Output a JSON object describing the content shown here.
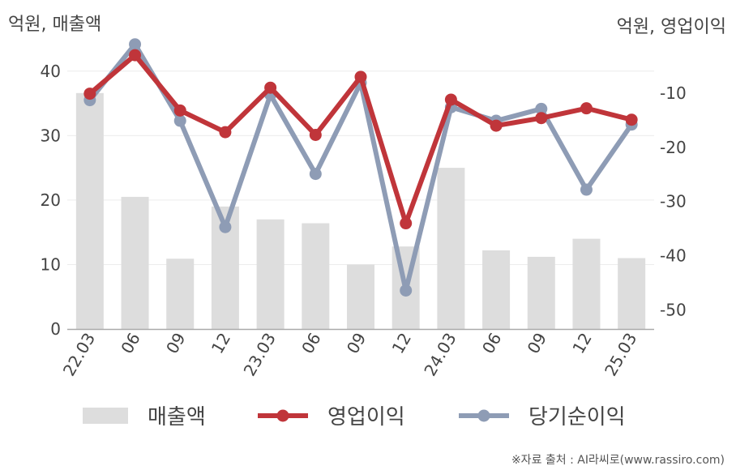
{
  "chart_data": {
    "type": "bar+line",
    "left_unit": "억원, 매출액",
    "right_unit": "억원, 영업이익",
    "categories": [
      "22.03",
      "06",
      "09",
      "12",
      "23.03",
      "06",
      "09",
      "12",
      "24.03",
      "06",
      "09",
      "12",
      "25.03"
    ],
    "left_axis": {
      "range": [
        0,
        45
      ],
      "ticks": [
        0,
        10,
        20,
        30,
        40
      ]
    },
    "right_axis": {
      "range": [
        -53.5,
        0
      ],
      "ticks": [
        -10,
        -20,
        -30,
        -40,
        -50
      ]
    },
    "grid": true,
    "series": [
      {
        "name": "매출액",
        "type": "bar",
        "axis": "left",
        "color": "#dddddd",
        "values": [
          36.6,
          20.5,
          10.9,
          19.0,
          17.0,
          16.4,
          10.0,
          12.8,
          25.0,
          12.2,
          11.2,
          14.0,
          11.0
        ]
      },
      {
        "name": "영업이익",
        "type": "line",
        "axis": "right",
        "color": "#c0353a",
        "values": [
          -10.1,
          -3.0,
          -13.2,
          -17.2,
          -9.0,
          -17.7,
          -7.0,
          -34.0,
          -11.2,
          -16.0,
          -14.6,
          -12.8,
          -14.9
        ]
      },
      {
        "name": "당기순이익",
        "type": "line",
        "axis": "right",
        "color": "#8e9cb5",
        "values": [
          -11.3,
          -1.0,
          -15.1,
          -34.7,
          -10.3,
          -24.9,
          -8.1,
          -46.4,
          -12.6,
          -15.1,
          -12.9,
          -27.8,
          -15.8
        ]
      }
    ]
  },
  "source_text": "※자료 출처 : AI라씨로(www.rassiro.com)"
}
